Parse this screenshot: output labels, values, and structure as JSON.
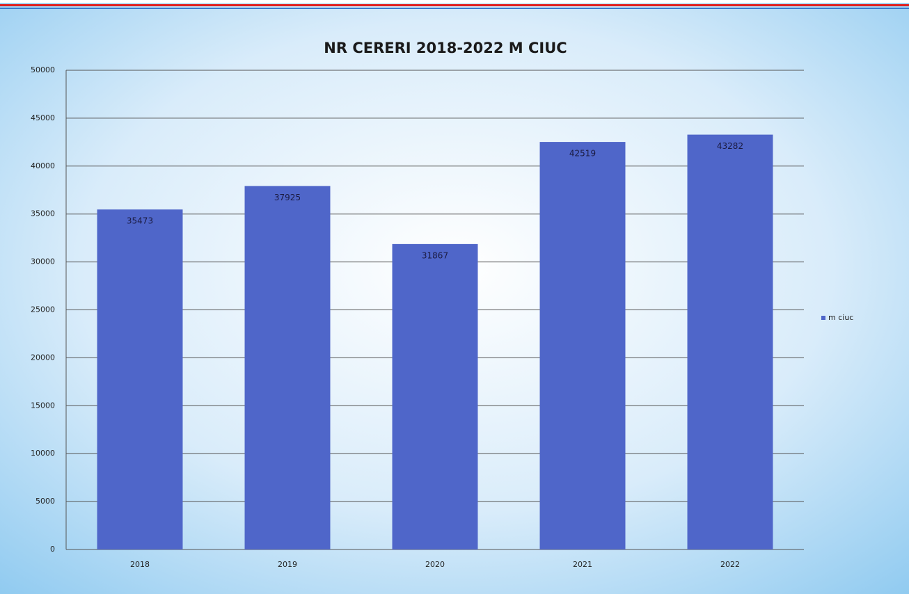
{
  "chart_data": {
    "type": "bar",
    "title": "NR CERERI 2018-2022 M CIUC",
    "categories": [
      "2018",
      "2019",
      "2020",
      "2021",
      "2022"
    ],
    "series": [
      {
        "name": "m ciuc",
        "color": "#4f66c9",
        "values": [
          35473,
          37925,
          31867,
          42519,
          43282
        ]
      }
    ],
    "ylim": [
      0,
      50000
    ],
    "yticks": [
      0,
      5000,
      10000,
      15000,
      20000,
      25000,
      30000,
      35000,
      40000,
      45000,
      50000
    ],
    "grid": true,
    "legend": "right"
  }
}
